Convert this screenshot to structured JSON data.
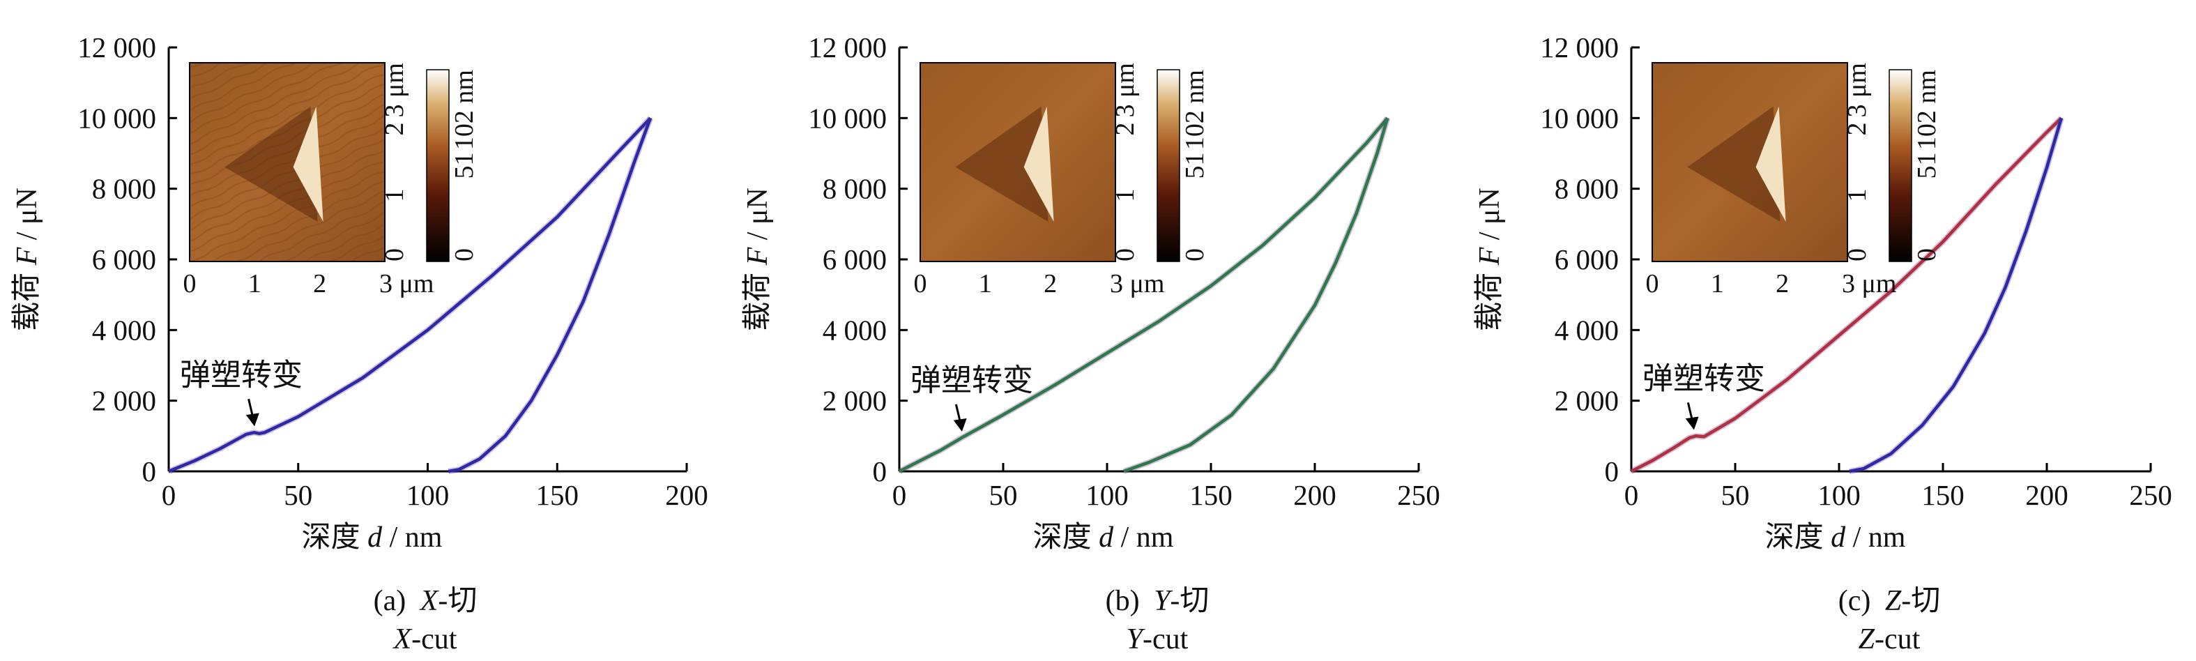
{
  "chart_data": [
    {
      "type": "line",
      "caption": {
        "label": "(a)",
        "axis": "X",
        "zh": "-切",
        "en": "-cut"
      },
      "xlabel": {
        "zh": "深度",
        "sym": "d",
        "unit": "/ nm"
      },
      "ylabel": {
        "zh": "载荷",
        "sym": "F",
        "unit": "/ μN"
      },
      "xlim": [
        0,
        200
      ],
      "ylim": [
        0,
        12000
      ],
      "xticks": [
        0,
        50,
        100,
        150,
        200
      ],
      "yticks": [
        0,
        2000,
        4000,
        6000,
        8000,
        10000,
        12000
      ],
      "ytick_labels": [
        "0",
        "2 000",
        "4 000",
        "6 000",
        "8 000",
        "10 000",
        "12 000"
      ],
      "annotation": {
        "text": "弹塑转变",
        "x": 33,
        "y": 1100
      },
      "series": [
        {
          "color": "#2a2aa8",
          "points": [
            [
              0,
              0
            ],
            [
              10,
              300
            ],
            [
              20,
              650
            ],
            [
              30,
              1050
            ],
            [
              33,
              1100
            ],
            [
              35,
              1070
            ],
            [
              37,
              1100
            ],
            [
              50,
              1550
            ],
            [
              75,
              2650
            ],
            [
              100,
              4000
            ],
            [
              125,
              5550
            ],
            [
              150,
              7200
            ],
            [
              175,
              9150
            ],
            [
              186,
              10000
            ]
          ]
        },
        {
          "color": "#2a2aa8",
          "points": [
            [
              186,
              10000
            ],
            [
              180,
              8800
            ],
            [
              170,
              6700
            ],
            [
              160,
              4800
            ],
            [
              150,
              3300
            ],
            [
              140,
              2000
            ],
            [
              130,
              1000
            ],
            [
              120,
              350
            ],
            [
              112,
              50
            ],
            [
              108,
              0
            ]
          ]
        }
      ],
      "inset": {
        "colorbar_labels": [
          "0",
          "51",
          "102 nm"
        ],
        "side_ticks": [
          "0",
          "1",
          "2",
          "3 μm"
        ],
        "bottom_ticks": [
          "0",
          "1",
          "2",
          "3 μm"
        ]
      }
    },
    {
      "type": "line",
      "caption": {
        "label": "(b)",
        "axis": "Y",
        "zh": "-切",
        "en": "-cut"
      },
      "xlabel": {
        "zh": "深度",
        "sym": "d",
        "unit": "/ nm"
      },
      "ylabel": {
        "zh": "载荷",
        "sym": "F",
        "unit": "/ μN"
      },
      "xlim": [
        0,
        250
      ],
      "ylim": [
        0,
        12000
      ],
      "xticks": [
        0,
        50,
        100,
        150,
        200,
        250
      ],
      "yticks": [
        0,
        2000,
        4000,
        6000,
        8000,
        10000,
        12000
      ],
      "ytick_labels": [
        "0",
        "2 000",
        "4 000",
        "6 000",
        "8 000",
        "10 000",
        "12 000"
      ],
      "annotation": {
        "text": "弹塑转变",
        "x": 30,
        "y": 950
      },
      "series": [
        {
          "color": "#2a7a4a",
          "points": [
            [
              0,
              0
            ],
            [
              10,
              300
            ],
            [
              20,
              600
            ],
            [
              30,
              950
            ],
            [
              50,
              1600
            ],
            [
              75,
              2450
            ],
            [
              100,
              3350
            ],
            [
              125,
              4250
            ],
            [
              150,
              5250
            ],
            [
              175,
              6400
            ],
            [
              200,
              7750
            ],
            [
              225,
              9300
            ],
            [
              235,
              10000
            ]
          ]
        },
        {
          "color": "#2a7a4a",
          "points": [
            [
              235,
              10000
            ],
            [
              230,
              9000
            ],
            [
              220,
              7300
            ],
            [
              210,
              5900
            ],
            [
              200,
              4700
            ],
            [
              180,
              2900
            ],
            [
              160,
              1600
            ],
            [
              140,
              750
            ],
            [
              120,
              250
            ],
            [
              108,
              0
            ]
          ]
        }
      ],
      "inset": {
        "colorbar_labels": [
          "0",
          "51",
          "102 nm"
        ],
        "side_ticks": [
          "0",
          "1",
          "2",
          "3 μm"
        ],
        "bottom_ticks": [
          "0",
          "1",
          "2",
          "3 μm"
        ]
      }
    },
    {
      "type": "line",
      "caption": {
        "label": "(c)",
        "axis": "Z",
        "zh": "-切",
        "en": "-cut"
      },
      "xlabel": {
        "zh": "深度",
        "sym": "d",
        "unit": "/ nm"
      },
      "ylabel": {
        "zh": "载荷",
        "sym": "F",
        "unit": "/ μN"
      },
      "xlim": [
        0,
        250
      ],
      "ylim": [
        0,
        12000
      ],
      "xticks": [
        0,
        50,
        100,
        150,
        200,
        250
      ],
      "yticks": [
        0,
        2000,
        4000,
        6000,
        8000,
        10000,
        12000
      ],
      "ytick_labels": [
        "0",
        "2 000",
        "4 000",
        "6 000",
        "8 000",
        "10 000",
        "12 000"
      ],
      "annotation": {
        "text": "弹塑转变",
        "x": 30,
        "y": 1000
      },
      "series": [
        {
          "color": "#b03040",
          "points": [
            [
              0,
              0
            ],
            [
              10,
              300
            ],
            [
              20,
              650
            ],
            [
              28,
              950
            ],
            [
              31,
              1000
            ],
            [
              35,
              980
            ],
            [
              50,
              1500
            ],
            [
              75,
              2600
            ],
            [
              100,
              3850
            ],
            [
              125,
              5100
            ],
            [
              150,
              6500
            ],
            [
              175,
              8100
            ],
            [
              200,
              9600
            ],
            [
              207,
              10000
            ]
          ]
        },
        {
          "color": "#2a2aa8",
          "points": [
            [
              207,
              10000
            ],
            [
              200,
              8600
            ],
            [
              190,
              6800
            ],
            [
              180,
              5200
            ],
            [
              170,
              3900
            ],
            [
              155,
              2400
            ],
            [
              140,
              1300
            ],
            [
              125,
              500
            ],
            [
              112,
              80
            ],
            [
              105,
              0
            ]
          ]
        }
      ],
      "inset": {
        "colorbar_labels": [
          "0",
          "51",
          "102 nm"
        ],
        "side_ticks": [
          "0",
          "1",
          "2",
          "3 μm"
        ],
        "bottom_ticks": [
          "0",
          "1",
          "2",
          "3 μm"
        ]
      }
    }
  ]
}
